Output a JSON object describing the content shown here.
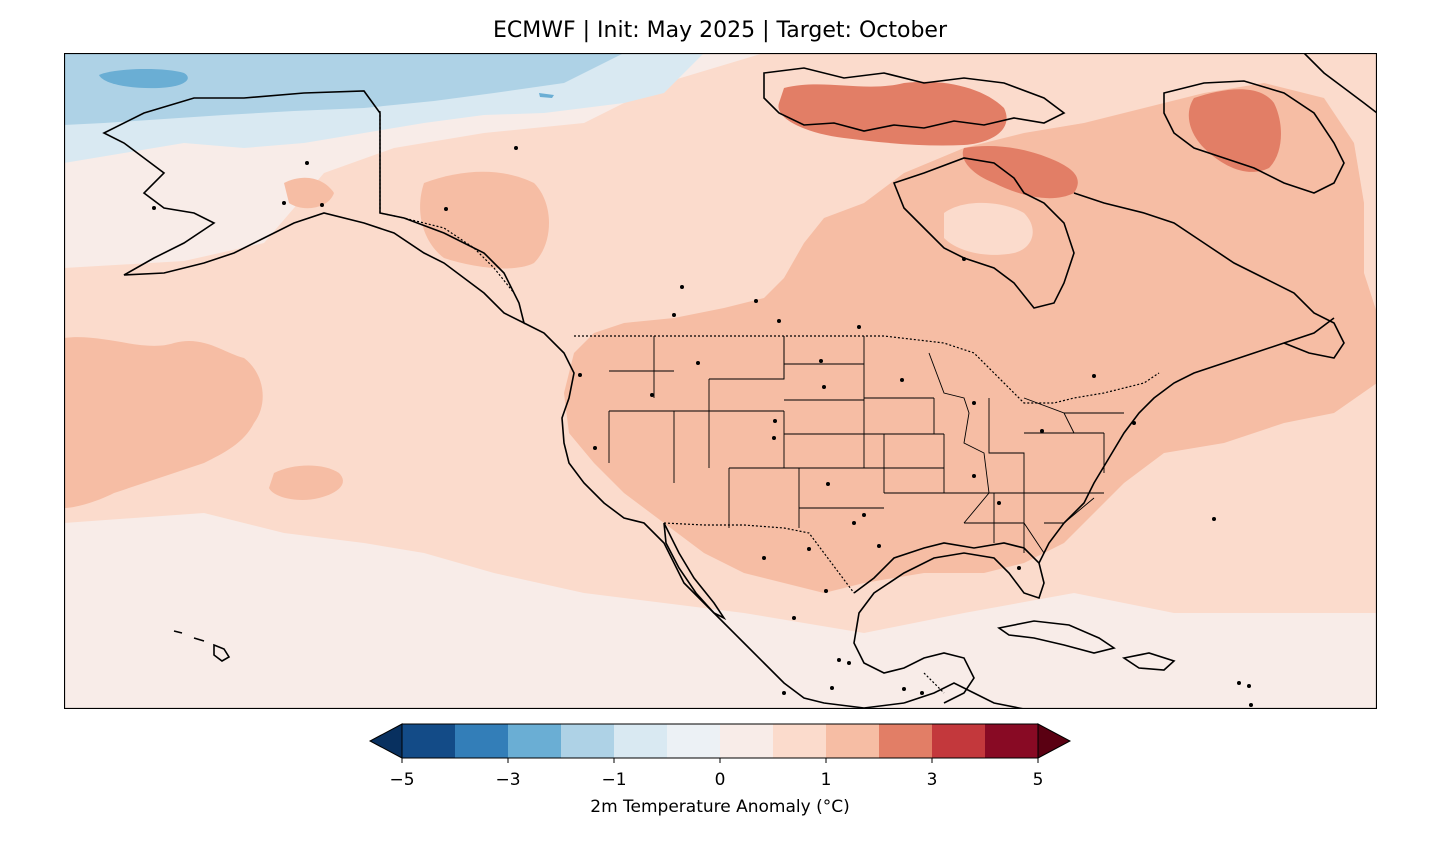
{
  "title": "ECMWF | Init: May 2025 | Target: October",
  "colorbar": {
    "label": "2m Temperature Anomaly (°C)",
    "levels": [
      -5,
      -4,
      -3,
      -2,
      -1,
      -0.5,
      0,
      0.5,
      1,
      2,
      3,
      4,
      5
    ],
    "colors": [
      "#134b87",
      "#337eb8",
      "#6aaed4",
      "#aed2e6",
      "#d9e9f2",
      "#ecf1f5",
      "#f8ece8",
      "#fbdbcc",
      "#f6bda4",
      "#e27e66",
      "#c3383c",
      "#880a24"
    ],
    "under_color": "#08305f",
    "over_color": "#5a0012",
    "tick_labels": [
      "−5",
      "−3",
      "−1",
      "0",
      "1",
      "3",
      "5"
    ]
  },
  "map": {
    "region": "North America",
    "projection": "PlateCarree",
    "extent_lon": [
      -180,
      -40
    ],
    "extent_lat": [
      10,
      80
    ],
    "features": [
      "coastlines",
      "country borders",
      "US state boundaries",
      "city markers"
    ]
  }
}
